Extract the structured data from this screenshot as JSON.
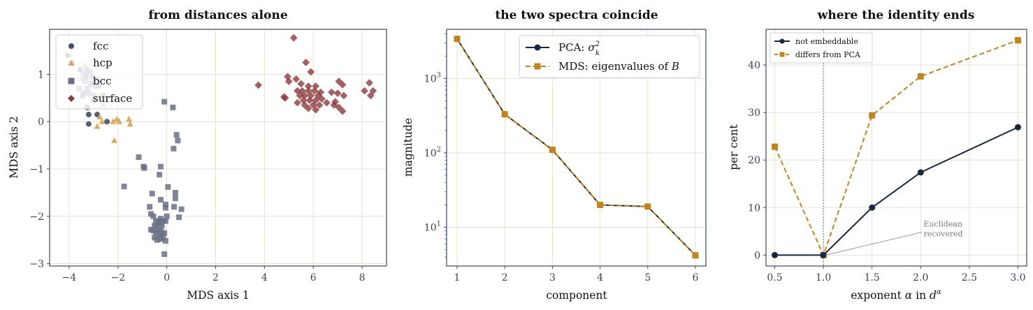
{
  "colors": {
    "navy": "#1b2640",
    "gold": "#bf8420",
    "fcc": "#454e66",
    "hcp": "#d4a45a",
    "bcc": "#6a7185",
    "surface": "#8c3a3c",
    "grid": "#dcdccc",
    "frame": "#3c4660"
  },
  "chart_data": [
    {
      "type": "scatter",
      "title": "from distances alone",
      "xlabel": "MDS axis 1",
      "ylabel": "MDS axis 2",
      "xlim": [
        -4.8,
        9.0
      ],
      "ylim": [
        -3.05,
        1.95
      ],
      "xticks": [
        -4,
        -2,
        0,
        2,
        4,
        6,
        8
      ],
      "xtick_labels": [
        "−4",
        "−2",
        "0",
        "2",
        "4",
        "6",
        "8"
      ],
      "yticks": [
        -3,
        -2,
        -1,
        0,
        1
      ],
      "ytick_labels": [
        "−3",
        "−2",
        "−1",
        "0",
        "1"
      ],
      "grid": true,
      "legend": "top-left",
      "series": [
        {
          "name": "fcc",
          "marker": "circle",
          "points": [
            [
              -3.2,
              0.15
            ],
            [
              -2.85,
              0.15
            ],
            [
              -3.25,
              0.3
            ],
            [
              -3.0,
              0.45
            ],
            [
              -2.6,
              0.55
            ],
            [
              -3.2,
              -0.05
            ],
            [
              -2.45,
              0.0
            ],
            [
              -3.4,
              0.6
            ],
            [
              -3.1,
              0.8
            ],
            [
              -2.8,
              0.75
            ],
            [
              -3.3,
              0.95
            ],
            [
              -3.55,
              1.1
            ],
            [
              -4.05,
              1.4
            ],
            [
              -3.9,
              1.25
            ]
          ]
        },
        {
          "name": "hcp",
          "marker": "triangle",
          "points": [
            [
              -3.5,
              0.9
            ],
            [
              -3.0,
              0.8
            ],
            [
              -2.8,
              0.55
            ],
            [
              -2.6,
              0.35
            ],
            [
              -2.75,
              0.1
            ],
            [
              -2.85,
              -0.1
            ],
            [
              -2.65,
              0.0
            ],
            [
              -2.2,
              0.0
            ],
            [
              -2.05,
              0.05
            ],
            [
              -1.95,
              0.0
            ],
            [
              -2.15,
              -0.4
            ],
            [
              -1.55,
              0.05
            ],
            [
              -1.5,
              -0.05
            ],
            [
              -3.2,
              1.05
            ],
            [
              -3.35,
              1.2
            ]
          ]
        },
        {
          "name": "bcc",
          "marker": "square",
          "points": [
            [
              -3.4,
              1.0
            ],
            [
              -3.3,
              1.1
            ],
            [
              -3.15,
              1.05
            ],
            [
              -3.05,
              0.95
            ],
            [
              -3.35,
              0.85
            ],
            [
              -3.1,
              0.8
            ],
            [
              -3.25,
              0.7
            ],
            [
              -2.95,
              0.75
            ],
            [
              -3.2,
              0.6
            ],
            [
              -3.0,
              0.55
            ],
            [
              -2.9,
              0.9
            ],
            [
              -3.45,
              0.55
            ],
            [
              -3.6,
              0.7
            ],
            [
              -0.1,
              0.42
            ],
            [
              0.25,
              0.3
            ],
            [
              0.4,
              -0.28
            ],
            [
              0.45,
              -0.4
            ],
            [
              0.28,
              -0.57
            ],
            [
              -1.15,
              -0.75
            ],
            [
              -0.95,
              -0.95
            ],
            [
              -0.92,
              -0.98
            ],
            [
              -0.25,
              -0.95
            ],
            [
              -0.3,
              -1.12
            ],
            [
              -1.75,
              -1.37
            ],
            [
              0.05,
              -1.38
            ],
            [
              0.35,
              -1.5
            ],
            [
              -0.6,
              -1.52
            ],
            [
              0.35,
              -1.62
            ],
            [
              -0.25,
              -1.65
            ],
            [
              -0.05,
              -1.75
            ],
            [
              -0.05,
              -1.82
            ],
            [
              0.3,
              -1.8
            ],
            [
              0.6,
              -1.85
            ],
            [
              -0.7,
              -1.8
            ],
            [
              -0.65,
              -1.95
            ],
            [
              -0.55,
              -2.0
            ],
            [
              0.0,
              -2.0
            ],
            [
              0.5,
              -2.02
            ],
            [
              -0.45,
              -2.1
            ],
            [
              -0.35,
              -2.1
            ],
            [
              -0.25,
              -2.05
            ],
            [
              -0.15,
              -2.1
            ],
            [
              -0.05,
              -2.1
            ],
            [
              -0.5,
              -2.2
            ],
            [
              -0.4,
              -2.2
            ],
            [
              -0.3,
              -2.15
            ],
            [
              -0.2,
              -2.2
            ],
            [
              -0.65,
              -2.28
            ],
            [
              -0.55,
              -2.3
            ],
            [
              -0.35,
              -2.3
            ],
            [
              -0.25,
              -2.3
            ],
            [
              -0.45,
              -2.35
            ],
            [
              -0.3,
              -2.4
            ],
            [
              -0.2,
              -2.38
            ],
            [
              -0.1,
              -2.35
            ],
            [
              -0.5,
              -2.45
            ],
            [
              -0.4,
              -2.5
            ],
            [
              -0.25,
              -2.48
            ],
            [
              -0.15,
              -2.45
            ],
            [
              -0.05,
              -2.52
            ],
            [
              -0.1,
              -2.8
            ]
          ]
        },
        {
          "name": "surface",
          "marker": "diamond",
          "points": [
            [
              5.2,
              1.77
            ],
            [
              5.7,
              1.25
            ],
            [
              5.9,
              1.05
            ],
            [
              4.95,
              0.95
            ],
            [
              5.3,
              0.9
            ],
            [
              5.0,
              0.85
            ],
            [
              3.75,
              0.77
            ],
            [
              4.8,
              0.52
            ],
            [
              4.85,
              0.5
            ],
            [
              5.5,
              0.8
            ],
            [
              5.8,
              0.75
            ],
            [
              6.1,
              0.75
            ],
            [
              5.35,
              0.65
            ],
            [
              5.55,
              0.65
            ],
            [
              5.8,
              0.65
            ],
            [
              6.05,
              0.65
            ],
            [
              6.3,
              0.62
            ],
            [
              5.45,
              0.55
            ],
            [
              5.65,
              0.55
            ],
            [
              5.9,
              0.55
            ],
            [
              6.2,
              0.55
            ],
            [
              5.6,
              0.45
            ],
            [
              5.85,
              0.45
            ],
            [
              6.1,
              0.45
            ],
            [
              5.35,
              0.4
            ],
            [
              5.65,
              0.35
            ],
            [
              6.0,
              0.35
            ],
            [
              6.25,
              0.35
            ],
            [
              5.8,
              0.28
            ],
            [
              6.1,
              0.25
            ],
            [
              6.35,
              0.48
            ],
            [
              6.55,
              0.4
            ],
            [
              6.75,
              0.62
            ],
            [
              7.05,
              0.85
            ],
            [
              7.2,
              0.78
            ],
            [
              7.0,
              0.6
            ],
            [
              7.25,
              0.55
            ],
            [
              6.85,
              0.35
            ],
            [
              7.05,
              0.3
            ],
            [
              7.2,
              0.22
            ],
            [
              6.9,
              0.42
            ],
            [
              8.1,
              0.65
            ],
            [
              8.3,
              0.82
            ],
            [
              8.45,
              0.65
            ],
            [
              8.35,
              0.55
            ]
          ]
        }
      ]
    },
    {
      "type": "line",
      "title": "the two spectra coincide",
      "xlabel": "component",
      "ylabel": "magnitude",
      "yscale": "log",
      "xlim": [
        0.78,
        6.22
      ],
      "ylim_log10": [
        0.48,
        3.66
      ],
      "x": [
        1,
        2,
        3,
        4,
        5,
        6
      ],
      "xticks": [
        1,
        2,
        3,
        4,
        5,
        6
      ],
      "xtick_labels": [
        "1",
        "2",
        "3",
        "4",
        "5",
        "6"
      ],
      "yticks": [
        10,
        100,
        1000
      ],
      "grid": true,
      "legend": "top-right",
      "series": [
        {
          "name_text": "PCA: ",
          "name_math": "σ",
          "name_sup": "2",
          "name_sub": "k",
          "style": "solid",
          "marker": "circle",
          "values": [
            3400,
            330,
            110,
            20,
            19,
            4.2
          ]
        },
        {
          "name_text": "MDS: eigenvalues of ",
          "name_math": "B",
          "style": "dashed",
          "marker": "square",
          "values": [
            3400,
            330,
            110,
            20,
            19,
            4.2
          ]
        }
      ]
    },
    {
      "type": "line",
      "title": "where the identity ends",
      "xlabel_text": "exponent ",
      "xlabel_alpha": "α",
      "xlabel_in": " in ",
      "xlabel_d": "d",
      "xlabel_sup": "α",
      "ylabel": "per cent",
      "xlim": [
        0.41,
        3.09
      ],
      "ylim": [
        -2.3,
        47.5
      ],
      "x": [
        0.5,
        1.0,
        1.5,
        2.0,
        3.0
      ],
      "xticks": [
        0.5,
        1.0,
        1.5,
        2.0,
        2.5,
        3.0
      ],
      "xtick_labels": [
        "0.5",
        "1.0",
        "1.5",
        "2.0",
        "2.5",
        "3.0"
      ],
      "yticks": [
        0,
        10,
        20,
        30,
        40
      ],
      "ytick_labels": [
        "0",
        "10",
        "20",
        "30",
        "40"
      ],
      "grid": true,
      "legend": "top-left",
      "vline_x": 1.0,
      "series": [
        {
          "name": "not embeddable",
          "style": "solid",
          "marker": "circle",
          "values": [
            0,
            0,
            10,
            17.4,
            26.9
          ]
        },
        {
          "name": "differs from PCA",
          "style": "dashed",
          "marker": "square",
          "values": [
            22.8,
            0,
            29.4,
            37.6,
            45.2
          ]
        }
      ],
      "annotation": {
        "lines": [
          "Euclidean",
          "recovered"
        ],
        "target": [
          1.0,
          0
        ],
        "text_at": [
          2.03,
          4.5
        ]
      }
    }
  ]
}
